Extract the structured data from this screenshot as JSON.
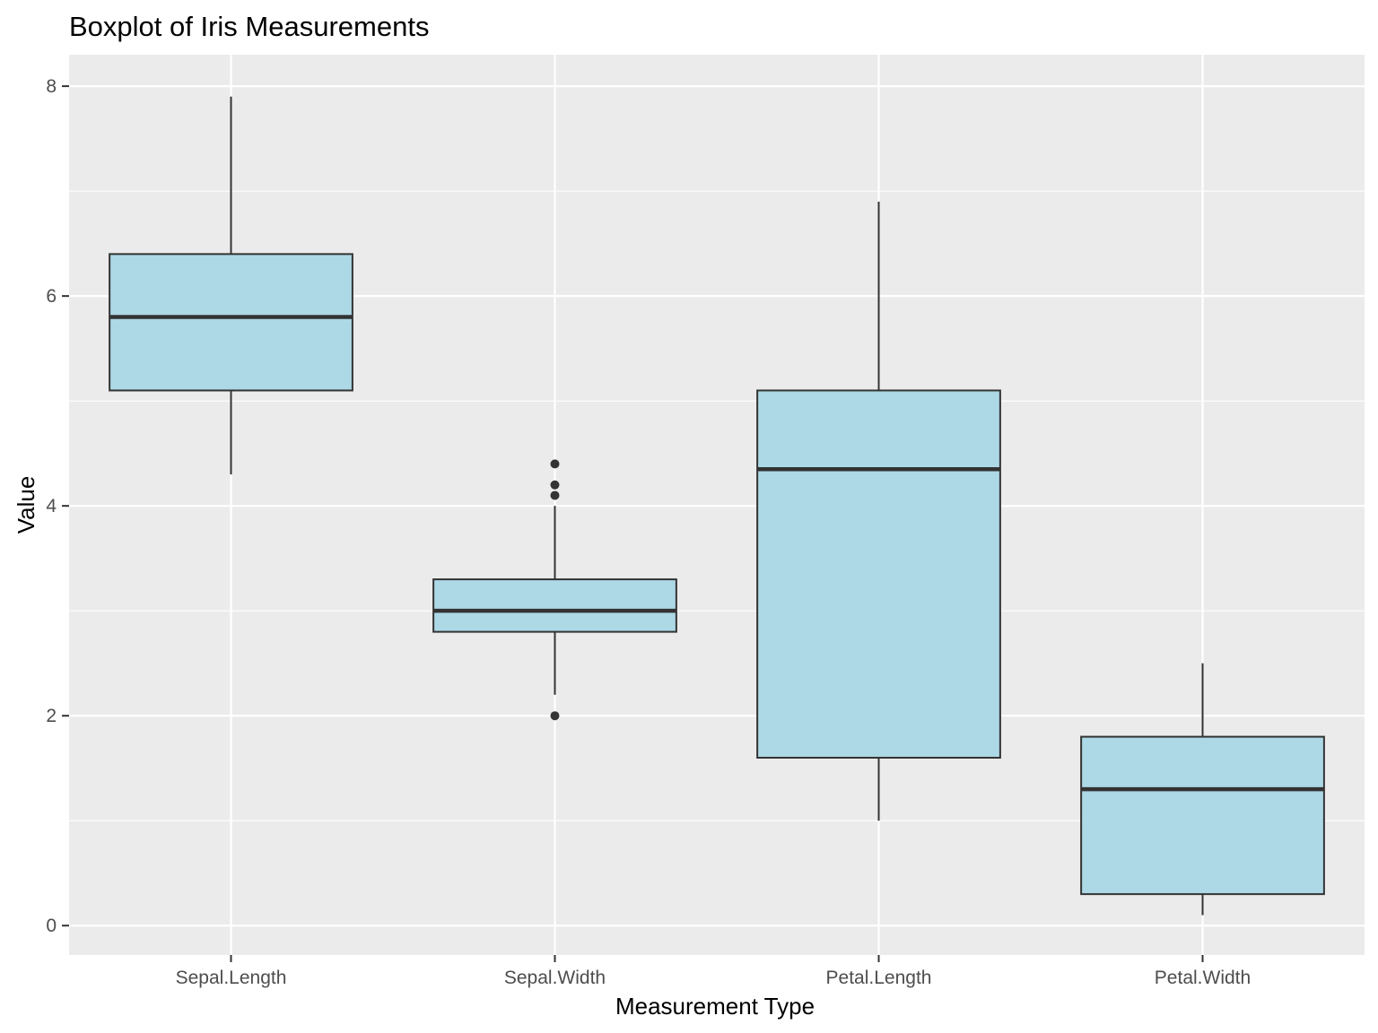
{
  "chart_data": {
    "type": "boxplot",
    "title": "Boxplot of Iris Measurements",
    "xlabel": "Measurement Type",
    "ylabel": "Value",
    "ylim": [
      -0.28,
      8.3
    ],
    "yticks": [
      0,
      2,
      4,
      6,
      8
    ],
    "categories": [
      "Sepal.Length",
      "Sepal.Width",
      "Petal.Length",
      "Petal.Width"
    ],
    "boxes": [
      {
        "category": "Sepal.Length",
        "min": 4.3,
        "q1": 5.1,
        "median": 5.8,
        "q3": 6.4,
        "max": 7.9,
        "outliers": []
      },
      {
        "category": "Sepal.Width",
        "min": 2.2,
        "q1": 2.8,
        "median": 3.0,
        "q3": 3.3,
        "max": 4.0,
        "outliers": [
          4.4,
          4.2,
          4.1,
          2.0
        ]
      },
      {
        "category": "Petal.Length",
        "min": 1.0,
        "q1": 1.6,
        "median": 4.35,
        "q3": 5.1,
        "max": 6.9,
        "outliers": []
      },
      {
        "category": "Petal.Width",
        "min": 0.1,
        "q1": 0.3,
        "median": 1.3,
        "q3": 1.8,
        "max": 2.5,
        "outliers": []
      }
    ],
    "grid": true,
    "colors": {
      "box_fill": "#ADD8E6",
      "box_stroke": "#333333",
      "panel_bg": "#EBEBEB",
      "grid_major": "#FFFFFF"
    }
  }
}
